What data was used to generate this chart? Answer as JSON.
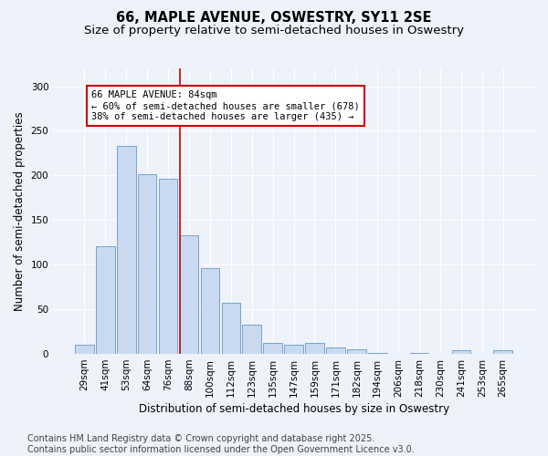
{
  "title_line1": "66, MAPLE AVENUE, OSWESTRY, SY11 2SE",
  "title_line2": "Size of property relative to semi-detached houses in Oswestry",
  "xlabel": "Distribution of semi-detached houses by size in Oswestry",
  "ylabel": "Number of semi-detached properties",
  "categories": [
    "29sqm",
    "41sqm",
    "53sqm",
    "64sqm",
    "76sqm",
    "88sqm",
    "100sqm",
    "112sqm",
    "123sqm",
    "135sqm",
    "147sqm",
    "159sqm",
    "171sqm",
    "182sqm",
    "194sqm",
    "206sqm",
    "218sqm",
    "230sqm",
    "241sqm",
    "253sqm",
    "265sqm"
  ],
  "values": [
    10,
    121,
    233,
    201,
    196,
    133,
    96,
    57,
    33,
    12,
    10,
    12,
    7,
    5,
    1,
    0,
    1,
    0,
    4,
    0,
    4
  ],
  "bar_color": "#c9d9f0",
  "bar_edge_color": "#6699cc",
  "vline_color": "#cc0000",
  "vline_x": 4.57,
  "annotation_text": "66 MAPLE AVENUE: 84sqm\n← 60% of semi-detached houses are smaller (678)\n38% of semi-detached houses are larger (435) →",
  "ylim": [
    0,
    320
  ],
  "yticks": [
    0,
    50,
    100,
    150,
    200,
    250,
    300
  ],
  "footer_text": "Contains HM Land Registry data © Crown copyright and database right 2025.\nContains public sector information licensed under the Open Government Licence v3.0.",
  "bg_color": "#eef2fb",
  "grid_color": "#ffffff",
  "title_fontsize": 10.5,
  "subtitle_fontsize": 9.5,
  "axis_label_fontsize": 8.5,
  "tick_fontsize": 7.5,
  "annotation_fontsize": 7.5,
  "footer_fontsize": 7.0
}
